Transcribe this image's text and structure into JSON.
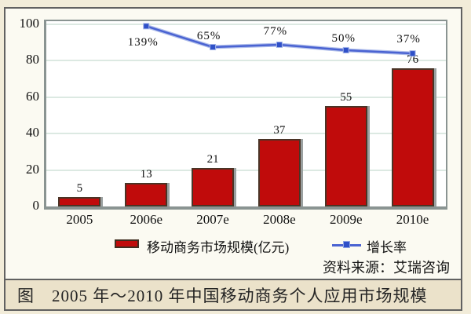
{
  "figure": {
    "source_note": "资料来源：艾瑞咨询",
    "caption": "图　2005 年～2010 年中国移动商务个人应用市场规模"
  },
  "legend": {
    "bar_label": "移动商务市场规模(亿元)",
    "line_label": "增长率"
  },
  "colors": {
    "bar_fill": "#c00b0b",
    "bar_border": "#4a3426",
    "bar_shadow": "#9aa0a0",
    "line_blue": "#4a63d2",
    "line_light": "#a3b4e8",
    "marker_blue": "#2f50c8",
    "background_beige": "#f2ecd9",
    "chart_background": "#fbfaf2",
    "caption_background": "#ebe2ca",
    "plot_border_gray": "#8a9492",
    "gridline": "#dce9e2"
  },
  "chart_data": {
    "type": "bar",
    "title": "",
    "categories": [
      "2005",
      "2006e",
      "2007e",
      "2008e",
      "2009e",
      "2010e"
    ],
    "series": [
      {
        "name": "移动商务市场规模(亿元)",
        "type": "bar",
        "values": [
          5,
          13,
          21,
          37,
          55,
          76
        ]
      },
      {
        "name": "增长率",
        "type": "line",
        "values_percent": [
          null,
          139,
          65,
          77,
          50,
          37
        ],
        "labels": [
          null,
          "139%",
          "65%",
          "77%",
          "50%",
          "37%"
        ],
        "plotted_on_left_axis": [
          null,
          99,
          87.5,
          88.8,
          85.8,
          84
        ]
      }
    ],
    "xlabel": "",
    "ylabel": "",
    "ylim": [
      0,
      100
    ],
    "yticks": [
      0,
      20,
      40,
      60,
      80,
      100
    ],
    "grid": "horizontal",
    "legend_position": "bottom",
    "rate_label_offsets": [
      null,
      [
        -4,
        21
      ],
      [
        -5,
        -14
      ],
      [
        -5,
        -17
      ],
      [
        -3,
        -15
      ],
      [
        -5,
        -18
      ]
    ]
  }
}
